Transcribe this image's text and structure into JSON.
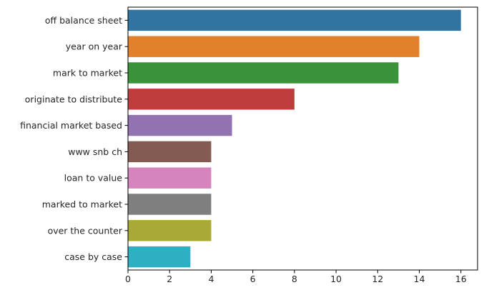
{
  "chart_data": {
    "type": "bar",
    "orientation": "horizontal",
    "title": "",
    "xlabel": "",
    "ylabel": "",
    "categories": [
      "off balance sheet",
      "year on year",
      "mark to market",
      "originate to distribute",
      "financial market based",
      "www snb ch",
      "loan to value",
      "marked to market",
      "over the counter",
      "case by case"
    ],
    "values": [
      16,
      14,
      13,
      8,
      5,
      4,
      4,
      4,
      4,
      3
    ],
    "colors": [
      "#3274a1",
      "#e1812c",
      "#3a923a",
      "#c03d3e",
      "#9372b2",
      "#845b53",
      "#d684bd",
      "#7f7f7f",
      "#a9aa35",
      "#2fb0c2"
    ],
    "xlim": [
      0,
      16.8
    ],
    "xticks": [
      0,
      2,
      4,
      6,
      8,
      10,
      12,
      14,
      16
    ],
    "grid": false,
    "legend": "none"
  }
}
